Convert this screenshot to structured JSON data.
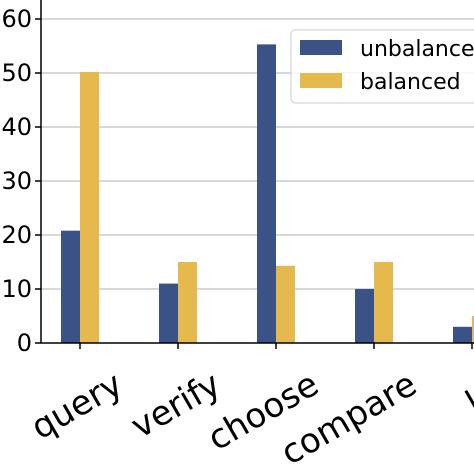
{
  "chart_data": {
    "type": "bar",
    "categories": [
      "query",
      "verify",
      "choose",
      "compare",
      "loc"
    ],
    "series": [
      {
        "name": "unbalanced",
        "values": [
          20.8,
          11,
          55.3,
          10,
          3
        ]
      },
      {
        "name": "balanced",
        "values": [
          50.2,
          15,
          14.3,
          15,
          5
        ]
      }
    ],
    "colors": [
      "#3b5287",
      "#e6b94f"
    ],
    "yticks": [
      "0",
      "10",
      "20",
      "30",
      "40",
      "50",
      "60"
    ],
    "ylim": [
      0,
      60
    ],
    "legend_labels": [
      "unbalance",
      "balanced"
    ],
    "legend_placement": "top-right",
    "grid": "horizontal",
    "title": "",
    "xlabel": "",
    "ylabel": ""
  }
}
